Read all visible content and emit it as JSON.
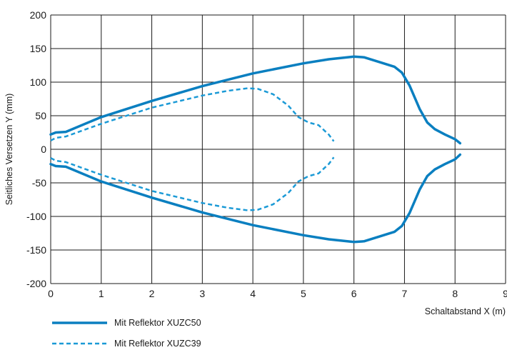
{
  "chart_data": {
    "type": "line",
    "title": "",
    "xlabel": "Schaltabstand X (m)",
    "ylabel": "Seitliches Versetzen Y (mm)",
    "xlim": [
      0,
      9
    ],
    "ylim": [
      -200,
      200
    ],
    "x_ticks": [
      "0",
      "1",
      "2",
      "3",
      "4",
      "5",
      "6",
      "7",
      "8",
      "9"
    ],
    "y_ticks": [
      "200",
      "150",
      "100",
      "50",
      "0",
      "-50",
      "-100",
      "-150",
      "-200"
    ],
    "grid": true,
    "legend_position": "bottom-left",
    "series": [
      {
        "name": "Mit Reflektor XUZC50",
        "color": "#0a7fc0",
        "style": "solid",
        "upper": [
          [
            0,
            22
          ],
          [
            0.1,
            25
          ],
          [
            0.3,
            26
          ],
          [
            1,
            48
          ],
          [
            2,
            72
          ],
          [
            3,
            94
          ],
          [
            4,
            113
          ],
          [
            5,
            128
          ],
          [
            5.5,
            134
          ],
          [
            6,
            138
          ],
          [
            6.2,
            137
          ],
          [
            6.5,
            130
          ],
          [
            6.8,
            123
          ],
          [
            6.95,
            114
          ],
          [
            7.1,
            95
          ],
          [
            7.3,
            60
          ],
          [
            7.45,
            40
          ],
          [
            7.6,
            30
          ],
          [
            7.8,
            22
          ],
          [
            8.0,
            15
          ],
          [
            8.1,
            9
          ]
        ],
        "lower": [
          [
            0,
            -22
          ],
          [
            0.1,
            -25
          ],
          [
            0.3,
            -26
          ],
          [
            1,
            -48
          ],
          [
            2,
            -72
          ],
          [
            3,
            -94
          ],
          [
            4,
            -113
          ],
          [
            5,
            -128
          ],
          [
            5.5,
            -134
          ],
          [
            6,
            -138
          ],
          [
            6.2,
            -137
          ],
          [
            6.5,
            -130
          ],
          [
            6.8,
            -123
          ],
          [
            6.95,
            -114
          ],
          [
            7.1,
            -95
          ],
          [
            7.3,
            -60
          ],
          [
            7.45,
            -40
          ],
          [
            7.6,
            -30
          ],
          [
            7.8,
            -22
          ],
          [
            8.0,
            -15
          ],
          [
            8.1,
            -8
          ]
        ]
      },
      {
        "name": "Mit Reflektor XUZC39",
        "color": "#1b9ad6",
        "style": "dashed",
        "upper": [
          [
            0,
            13
          ],
          [
            0.1,
            17
          ],
          [
            0.3,
            19
          ],
          [
            1,
            38
          ],
          [
            2,
            62
          ],
          [
            3,
            80
          ],
          [
            3.5,
            87
          ],
          [
            3.9,
            91
          ],
          [
            4.1,
            90
          ],
          [
            4.4,
            82
          ],
          [
            4.7,
            65
          ],
          [
            4.9,
            48
          ],
          [
            5.1,
            40
          ],
          [
            5.3,
            36
          ],
          [
            5.5,
            22
          ],
          [
            5.6,
            12
          ]
        ],
        "lower": [
          [
            0,
            -13
          ],
          [
            0.1,
            -17
          ],
          [
            0.3,
            -19
          ],
          [
            1,
            -38
          ],
          [
            2,
            -62
          ],
          [
            3,
            -80
          ],
          [
            3.5,
            -87
          ],
          [
            3.9,
            -91
          ],
          [
            4.1,
            -90
          ],
          [
            4.4,
            -82
          ],
          [
            4.7,
            -65
          ],
          [
            4.9,
            -48
          ],
          [
            5.1,
            -40
          ],
          [
            5.3,
            -36
          ],
          [
            5.5,
            -22
          ],
          [
            5.6,
            -12
          ]
        ]
      }
    ]
  }
}
